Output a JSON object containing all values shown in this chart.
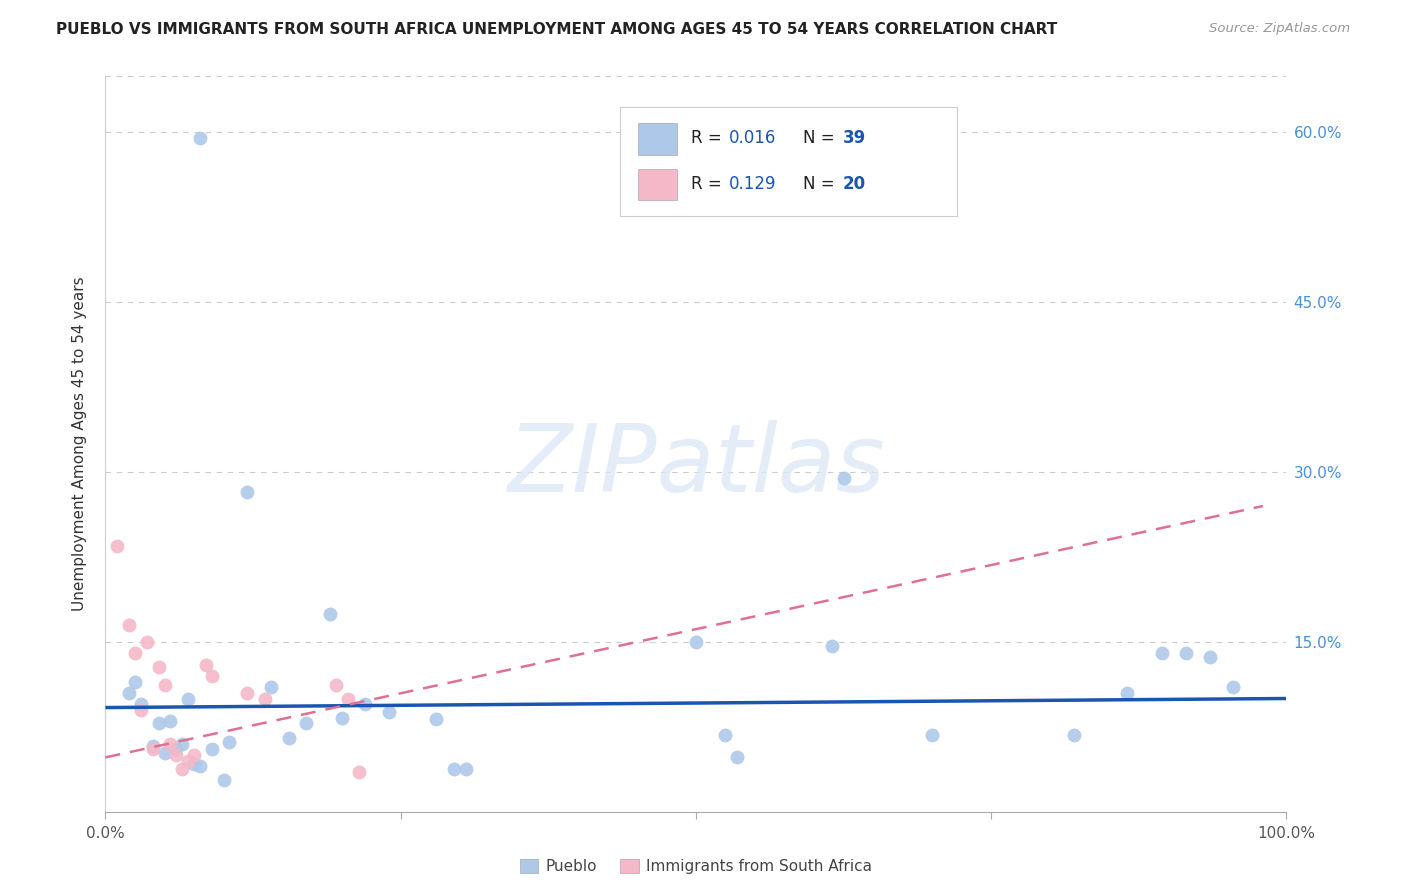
{
  "title": "PUEBLO VS IMMIGRANTS FROM SOUTH AFRICA UNEMPLOYMENT AMONG AGES 45 TO 54 YEARS CORRELATION CHART",
  "source": "Source: ZipAtlas.com",
  "ylabel": "Unemployment Among Ages 45 to 54 years",
  "xlim": [
    0.0,
    1.0
  ],
  "ylim": [
    0.0,
    0.65
  ],
  "xticks": [
    0.0,
    0.25,
    0.5,
    0.75,
    1.0
  ],
  "xticklabels": [
    "0.0%",
    "",
    "",
    "",
    "100.0%"
  ],
  "yticks": [
    0.0,
    0.15,
    0.3,
    0.45,
    0.6
  ],
  "yticklabels_right": [
    "",
    "15.0%",
    "30.0%",
    "45.0%",
    "60.0%"
  ],
  "pueblo_color": "#aec8ea",
  "immigrants_color": "#f4b8c8",
  "pueblo_line_color": "#1a56b0",
  "immigrants_line_color": "#e07090",
  "legend_text_color": "#1a56b0",
  "pueblo_R": "0.016",
  "pueblo_N": "39",
  "immigrants_R": "0.129",
  "immigrants_N": "20",
  "pueblo_scatter_x": [
    0.08,
    0.19,
    0.2,
    0.22,
    0.24,
    0.02,
    0.025,
    0.03,
    0.04,
    0.045,
    0.05,
    0.055,
    0.06,
    0.065,
    0.07,
    0.075,
    0.08,
    0.09,
    0.1,
    0.105,
    0.12,
    0.14,
    0.155,
    0.17,
    0.28,
    0.295,
    0.305,
    0.5,
    0.525,
    0.535,
    0.615,
    0.625,
    0.7,
    0.82,
    0.865,
    0.895,
    0.915,
    0.935,
    0.955
  ],
  "pueblo_scatter_y": [
    0.595,
    0.175,
    0.083,
    0.095,
    0.088,
    0.105,
    0.115,
    0.095,
    0.058,
    0.078,
    0.052,
    0.08,
    0.055,
    0.06,
    0.1,
    0.042,
    0.04,
    0.055,
    0.028,
    0.062,
    0.282,
    0.11,
    0.065,
    0.078,
    0.082,
    0.038,
    0.038,
    0.15,
    0.068,
    0.048,
    0.146,
    0.295,
    0.068,
    0.068,
    0.105,
    0.14,
    0.14,
    0.137,
    0.11
  ],
  "immigrants_scatter_x": [
    0.01,
    0.02,
    0.025,
    0.03,
    0.035,
    0.04,
    0.045,
    0.05,
    0.055,
    0.06,
    0.065,
    0.07,
    0.075,
    0.085,
    0.09,
    0.12,
    0.135,
    0.195,
    0.205,
    0.215
  ],
  "immigrants_scatter_y": [
    0.235,
    0.165,
    0.14,
    0.09,
    0.15,
    0.055,
    0.128,
    0.112,
    0.06,
    0.05,
    0.038,
    0.045,
    0.05,
    0.13,
    0.12,
    0.105,
    0.1,
    0.112,
    0.1,
    0.035
  ],
  "pueblo_trendline_x": [
    0.0,
    1.0
  ],
  "pueblo_trendline_y": [
    0.092,
    0.1
  ],
  "immigrants_trendline_x": [
    0.0,
    0.98
  ],
  "immigrants_trendline_y": [
    0.048,
    0.27
  ],
  "background_color": "#ffffff",
  "grid_color": "#cccccc",
  "right_yaxis_color": "#4a90d9",
  "marker_size": 100
}
